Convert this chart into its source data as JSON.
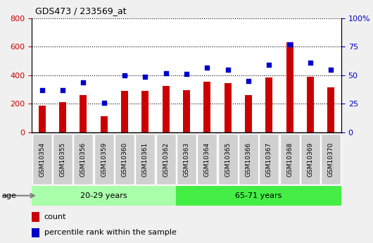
{
  "title": "GDS473 / 233569_at",
  "categories": [
    "GSM10354",
    "GSM10355",
    "GSM10356",
    "GSM10359",
    "GSM10360",
    "GSM10361",
    "GSM10362",
    "GSM10363",
    "GSM10364",
    "GSM10365",
    "GSM10366",
    "GSM10367",
    "GSM10368",
    "GSM10369",
    "GSM10370"
  ],
  "bar_values": [
    190,
    210,
    260,
    115,
    290,
    290,
    325,
    295,
    355,
    345,
    260,
    385,
    630,
    390,
    315
  ],
  "scatter_values": [
    37,
    37,
    44,
    26,
    50,
    49,
    52,
    51,
    57,
    55,
    45,
    59,
    77,
    61,
    55
  ],
  "bar_color": "#cc0000",
  "scatter_color": "#0000cc",
  "ylim_left": [
    0,
    800
  ],
  "ylim_right": [
    0,
    100
  ],
  "yticks_left": [
    0,
    200,
    400,
    600,
    800
  ],
  "yticks_right": [
    0,
    25,
    50,
    75,
    100
  ],
  "groups": [
    {
      "label": "20-29 years",
      "start": 0,
      "end": 7,
      "color": "#aaffaa"
    },
    {
      "label": "65-71 years",
      "start": 7,
      "end": 15,
      "color": "#44ee44"
    }
  ],
  "age_label": "age",
  "legend_count": "count",
  "legend_percentile": "percentile rank within the sample",
  "background_color": "#f0f0f0",
  "plot_bg_color": "#ffffff",
  "right_axis_label_color": "#0000cc",
  "left_axis_label_color": "#cc0000",
  "ticklabel_bg": "#d0d0d0",
  "group1_color": "#aaffaa",
  "group2_color": "#44ee44"
}
